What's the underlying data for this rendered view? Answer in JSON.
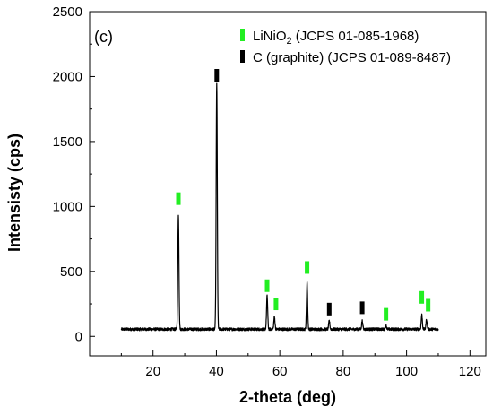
{
  "chart_data": {
    "type": "line",
    "panel_label": "(c)",
    "xlabel": "2-theta (deg)",
    "ylabel": "Intensisty (cps)",
    "xlim": [
      0,
      125
    ],
    "ylim": [
      -150,
      2500
    ],
    "xticks": [
      20,
      40,
      60,
      80,
      100,
      120
    ],
    "yticks": [
      0,
      500,
      1000,
      1500,
      2000,
      2500
    ],
    "grid": false,
    "legend_position": "top-right",
    "legend": [
      {
        "label_main": "LiNiO",
        "label_sub": "2",
        "label_rest": " (JCPS 01-085-1968)",
        "color": "#22ee22"
      },
      {
        "label_main": "C (graphite) (JCPS 01-089-8487)",
        "label_sub": "",
        "label_rest": "",
        "color": "#000000"
      }
    ],
    "series": [
      {
        "color": "#000000",
        "baseline": 55,
        "x_range": [
          10,
          110
        ],
        "peaks": [
          {
            "x": 28.0,
            "y": 930
          },
          {
            "x": 40.1,
            "y": 1950
          },
          {
            "x": 56.0,
            "y": 310
          },
          {
            "x": 58.3,
            "y": 150
          },
          {
            "x": 68.6,
            "y": 420
          },
          {
            "x": 75.6,
            "y": 120
          },
          {
            "x": 86.0,
            "y": 120
          },
          {
            "x": 93.5,
            "y": 85
          },
          {
            "x": 104.8,
            "y": 165
          },
          {
            "x": 106.3,
            "y": 130
          }
        ]
      }
    ],
    "markers": [
      {
        "x": 28.0,
        "y": 1060,
        "phase": "LiNiO2",
        "color": "#22ee22"
      },
      {
        "x": 40.1,
        "y": 2010,
        "phase": "C (graphite)",
        "color": "#000000"
      },
      {
        "x": 56.0,
        "y": 390,
        "phase": "LiNiO2",
        "color": "#22ee22"
      },
      {
        "x": 58.8,
        "y": 250,
        "phase": "LiNiO2",
        "color": "#22ee22"
      },
      {
        "x": 68.6,
        "y": 530,
        "phase": "LiNiO2",
        "color": "#22ee22"
      },
      {
        "x": 75.6,
        "y": 210,
        "phase": "C (graphite)",
        "color": "#000000"
      },
      {
        "x": 86.0,
        "y": 220,
        "phase": "C (graphite)",
        "color": "#000000"
      },
      {
        "x": 93.5,
        "y": 170,
        "phase": "LiNiO2",
        "color": "#22ee22"
      },
      {
        "x": 104.8,
        "y": 300,
        "phase": "LiNiO2",
        "color": "#22ee22"
      },
      {
        "x": 106.8,
        "y": 240,
        "phase": "LiNiO2",
        "color": "#22ee22"
      }
    ]
  }
}
